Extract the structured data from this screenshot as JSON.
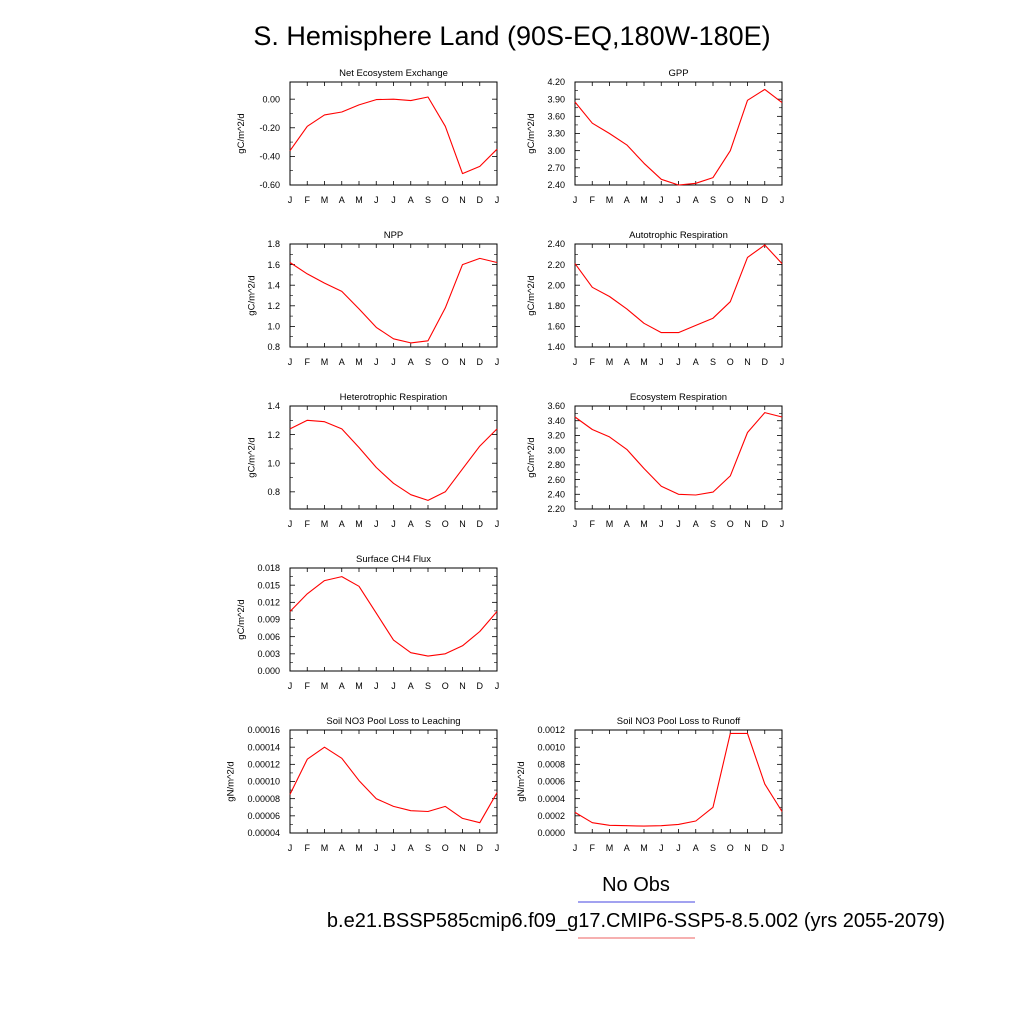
{
  "figure": {
    "title": "S. Hemisphere Land (90S-EQ,180W-180E)",
    "legend": [
      {
        "label": "No Obs",
        "color": "#6a6ae8"
      },
      {
        "label": "b.e21.BSSP585cmip6.f09_g17.CMIP6-SSP5-8.5.002 (yrs 2055-2079)",
        "color": "#f08080"
      }
    ],
    "series_color": "#ff0000"
  },
  "chart_data": [
    {
      "type": "line",
      "title": "Net Ecosystem Exchange",
      "xlabel": "",
      "ylabel": "gC/m^2/d",
      "categories": [
        "J",
        "F",
        "M",
        "A",
        "M",
        "J",
        "J",
        "A",
        "S",
        "O",
        "N",
        "D",
        "J"
      ],
      "values": [
        -0.36,
        -0.19,
        -0.11,
        -0.09,
        -0.04,
        -0.003,
        0.0,
        -0.01,
        0.015,
        -0.19,
        -0.52,
        -0.47,
        -0.35
      ],
      "ylim": [
        -0.6,
        0.12
      ],
      "yticks": [
        -0.6,
        -0.4,
        -0.2,
        0.0
      ],
      "ytick_labels": [
        "-0.60",
        "-0.40",
        "-0.20",
        "0.00"
      ]
    },
    {
      "type": "line",
      "title": "GPP",
      "xlabel": "",
      "ylabel": "gC/m^2/d",
      "categories": [
        "J",
        "F",
        "M",
        "A",
        "M",
        "J",
        "J",
        "A",
        "S",
        "O",
        "N",
        "D",
        "J"
      ],
      "values": [
        3.85,
        3.48,
        3.3,
        3.1,
        2.78,
        2.5,
        2.4,
        2.43,
        2.53,
        3.0,
        3.88,
        4.07,
        3.84
      ],
      "ylim": [
        2.4,
        4.2
      ],
      "yticks": [
        2.4,
        2.7,
        3.0,
        3.3,
        3.6,
        3.9,
        4.2
      ],
      "ytick_labels": [
        "2.40",
        "2.70",
        "3.00",
        "3.30",
        "3.60",
        "3.90",
        "4.20"
      ]
    },
    {
      "type": "line",
      "title": "NPP",
      "xlabel": "",
      "ylabel": "gC/m^2/d",
      "categories": [
        "J",
        "F",
        "M",
        "A",
        "M",
        "J",
        "J",
        "A",
        "S",
        "O",
        "N",
        "D",
        "J"
      ],
      "values": [
        1.62,
        1.51,
        1.42,
        1.34,
        1.17,
        0.99,
        0.88,
        0.84,
        0.86,
        1.18,
        1.6,
        1.66,
        1.62
      ],
      "ylim": [
        0.8,
        1.8
      ],
      "yticks": [
        0.8,
        1.0,
        1.2,
        1.4,
        1.6,
        1.8
      ],
      "ytick_labels": [
        "0.8",
        "1.0",
        "1.2",
        "1.4",
        "1.6",
        "1.8"
      ]
    },
    {
      "type": "line",
      "title": "Autotrophic Respiration",
      "xlabel": "",
      "ylabel": "gC/m^2/d",
      "categories": [
        "J",
        "F",
        "M",
        "A",
        "M",
        "J",
        "J",
        "A",
        "S",
        "O",
        "N",
        "D",
        "J"
      ],
      "values": [
        2.21,
        1.98,
        1.89,
        1.77,
        1.63,
        1.54,
        1.54,
        1.61,
        1.68,
        1.84,
        2.27,
        2.39,
        2.21
      ],
      "ylim": [
        1.4,
        2.4
      ],
      "yticks": [
        1.4,
        1.6,
        1.8,
        2.0,
        2.2,
        2.4
      ],
      "ytick_labels": [
        "1.40",
        "1.60",
        "1.80",
        "2.00",
        "2.20",
        "2.40"
      ]
    },
    {
      "type": "line",
      "title": "Heterotrophic Respiration",
      "xlabel": "",
      "ylabel": "gC/m^2/d",
      "categories": [
        "J",
        "F",
        "M",
        "A",
        "M",
        "J",
        "J",
        "A",
        "S",
        "O",
        "N",
        "D",
        "J"
      ],
      "values": [
        1.24,
        1.3,
        1.29,
        1.24,
        1.11,
        0.97,
        0.86,
        0.78,
        0.74,
        0.8,
        0.96,
        1.12,
        1.24
      ],
      "ylim": [
        0.68,
        1.4
      ],
      "yticks": [
        0.8,
        1.0,
        1.2,
        1.4
      ],
      "ytick_labels": [
        "0.8",
        "1.0",
        "1.2",
        "1.4"
      ]
    },
    {
      "type": "line",
      "title": "Ecosystem Respiration",
      "xlabel": "",
      "ylabel": "gC/m^2/d",
      "categories": [
        "J",
        "F",
        "M",
        "A",
        "M",
        "J",
        "J",
        "A",
        "S",
        "O",
        "N",
        "D",
        "J"
      ],
      "values": [
        3.45,
        3.28,
        3.18,
        3.01,
        2.75,
        2.51,
        2.4,
        2.39,
        2.43,
        2.65,
        3.24,
        3.51,
        3.45
      ],
      "ylim": [
        2.2,
        3.6
      ],
      "yticks": [
        2.2,
        2.4,
        2.6,
        2.8,
        3.0,
        3.2,
        3.4,
        3.6
      ],
      "ytick_labels": [
        "2.20",
        "2.40",
        "2.60",
        "2.80",
        "3.00",
        "3.20",
        "3.40",
        "3.60"
      ]
    },
    {
      "type": "line",
      "title": "Surface CH4 Flux",
      "xlabel": "",
      "ylabel": "gC/m^2/d",
      "categories": [
        "J",
        "F",
        "M",
        "A",
        "M",
        "J",
        "J",
        "A",
        "S",
        "O",
        "N",
        "D",
        "J"
      ],
      "values": [
        0.0104,
        0.0135,
        0.0158,
        0.0165,
        0.0148,
        0.0101,
        0.0054,
        0.0032,
        0.0026,
        0.003,
        0.0044,
        0.0069,
        0.0104
      ],
      "ylim": [
        0.0,
        0.018
      ],
      "yticks": [
        0.0,
        0.003,
        0.006,
        0.009,
        0.012,
        0.015,
        0.018
      ],
      "ytick_labels": [
        "0.000",
        "0.003",
        "0.006",
        "0.009",
        "0.012",
        "0.015",
        "0.018"
      ]
    },
    {
      "type": "line",
      "title": "Soil NO3 Pool Loss to Leaching",
      "xlabel": "",
      "ylabel": "gN/m^2/d",
      "categories": [
        "J",
        "F",
        "M",
        "A",
        "M",
        "J",
        "J",
        "A",
        "S",
        "O",
        "N",
        "D",
        "J"
      ],
      "values": [
        8.5e-05,
        0.000126,
        0.00014,
        0.000127,
        0.000101,
        8e-05,
        7.1e-05,
        6.6e-05,
        6.5e-05,
        7.1e-05,
        5.7e-05,
        5.2e-05,
        8.7e-05
      ],
      "ylim": [
        4e-05,
        0.00016
      ],
      "yticks": [
        4e-05,
        6e-05,
        8e-05,
        0.0001,
        0.00012,
        0.00014,
        0.00016
      ],
      "ytick_labels": [
        "0.00004",
        "0.00006",
        "0.00008",
        "0.00010",
        "0.00012",
        "0.00014",
        "0.00016"
      ]
    },
    {
      "type": "line",
      "title": "Soil NO3 Pool Loss to Runoff",
      "xlabel": "",
      "ylabel": "gN/m^2/d",
      "categories": [
        "J",
        "F",
        "M",
        "A",
        "M",
        "J",
        "J",
        "A",
        "S",
        "O",
        "N",
        "D",
        "J"
      ],
      "values": [
        0.00024,
        0.00012,
        9e-05,
        8.5e-05,
        8e-05,
        8.5e-05,
        0.0001,
        0.00014,
        0.0003,
        0.00116,
        0.00116,
        0.00057,
        0.00025
      ],
      "ylim": [
        0.0,
        0.0012
      ],
      "yticks": [
        0.0,
        0.0002,
        0.0004,
        0.0006,
        0.0008,
        0.001,
        0.0012
      ],
      "ytick_labels": [
        "0.0000",
        "0.0002",
        "0.0004",
        "0.0006",
        "0.0008",
        "0.0010",
        "0.0012"
      ]
    }
  ]
}
